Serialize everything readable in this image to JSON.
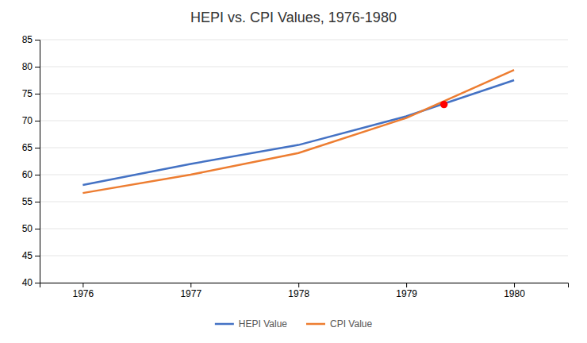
{
  "chart_data": {
    "type": "line",
    "title": "HEPI vs. CPI Values, 1976-1980",
    "x": [
      1976,
      1977,
      1978,
      1979,
      1980
    ],
    "series": [
      {
        "name": "HEPI Value",
        "color": "#4472C4",
        "values": [
          58.1,
          62.0,
          65.5,
          70.8,
          77.5
        ]
      },
      {
        "name": "CPI Value",
        "color": "#ED7D31",
        "values": [
          56.6,
          60.0,
          64.0,
          70.5,
          79.4
        ]
      },
      {
        "type": "scatter",
        "marker": "circle",
        "color": "#FF0000",
        "x": [
          1979.35
        ],
        "values": [
          73.0
        ]
      }
    ],
    "xlim": [
      1975.6,
      1980.5
    ],
    "xticks": [
      1976,
      1977,
      1978,
      1979,
      1980
    ],
    "ylim": [
      40,
      85
    ],
    "yticks": [
      40,
      45,
      50,
      55,
      60,
      65,
      70,
      75,
      80,
      85
    ],
    "grid": true,
    "legend": "bottom"
  }
}
